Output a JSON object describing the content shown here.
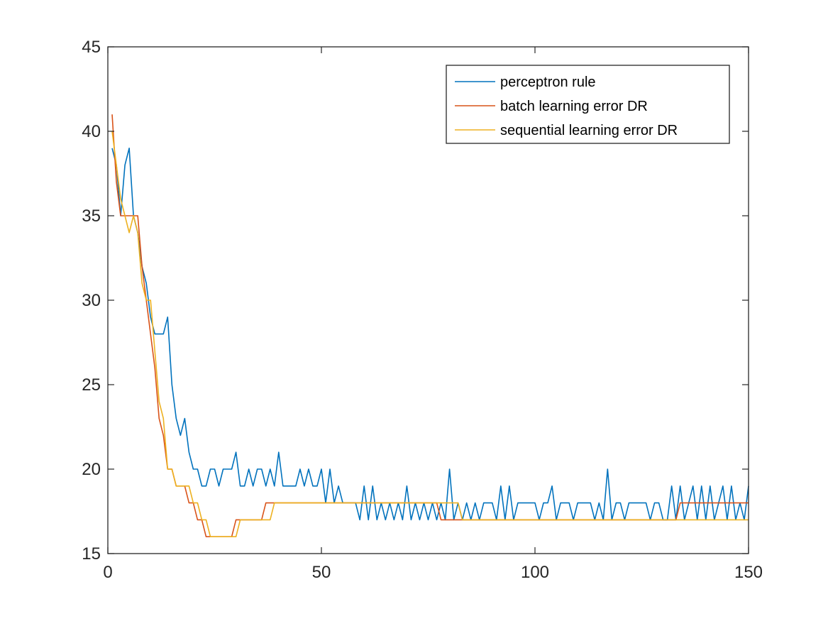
{
  "chart_data": {
    "type": "line",
    "title": "",
    "xlabel": "",
    "ylabel": "",
    "xlim": [
      0,
      150
    ],
    "ylim": [
      15,
      45
    ],
    "x_ticks": [
      0,
      50,
      100,
      150
    ],
    "y_ticks": [
      15,
      20,
      25,
      30,
      35,
      40,
      45
    ],
    "grid": false,
    "legend_position": "top-right",
    "series": [
      {
        "name": "perceptron rule",
        "color": "#0072BD",
        "x_start": 1,
        "values": [
          39,
          38,
          35,
          38,
          39,
          35,
          34,
          32,
          31,
          29,
          28,
          28,
          28,
          29,
          25,
          23,
          22,
          23,
          21,
          20,
          20,
          19,
          19,
          20,
          20,
          19,
          20,
          20,
          20,
          21,
          19,
          19,
          20,
          19,
          20,
          20,
          19,
          20,
          19,
          21,
          19,
          19,
          19,
          19,
          20,
          19,
          20,
          19,
          19,
          20,
          18,
          20,
          18,
          19,
          18,
          18,
          18,
          18,
          17,
          19,
          17,
          19,
          17,
          18,
          17,
          18,
          17,
          18,
          17,
          19,
          17,
          18,
          17,
          18,
          17,
          18,
          17,
          18,
          17,
          20,
          17,
          18,
          17,
          18,
          17,
          18,
          17,
          18,
          18,
          18,
          17,
          19,
          17,
          19,
          17,
          18,
          18,
          18,
          18,
          18,
          17,
          18,
          18,
          19,
          17,
          18,
          18,
          18,
          17,
          18,
          18,
          18,
          18,
          17,
          18,
          17,
          20,
          17,
          18,
          18,
          17,
          18,
          18,
          18,
          18,
          18,
          17,
          18,
          18,
          17,
          17,
          19,
          17,
          19,
          17,
          18,
          19,
          17,
          19,
          17,
          19,
          17,
          18,
          19,
          17,
          19,
          17,
          18,
          17,
          19
        ]
      },
      {
        "name": "batch learning error DR",
        "color": "#D95319",
        "x_start": 1,
        "values": [
          41,
          37,
          35,
          35,
          35,
          35,
          35,
          32,
          30,
          28,
          26,
          23,
          22,
          20,
          20,
          19,
          19,
          19,
          18,
          18,
          17,
          17,
          16,
          16,
          16,
          16,
          16,
          16,
          16,
          17,
          17,
          17,
          17,
          17,
          17,
          17,
          18,
          18,
          18,
          18,
          18,
          18,
          18,
          18,
          18,
          18,
          18,
          18,
          18,
          18,
          18,
          18,
          18,
          18,
          18,
          18,
          18,
          18,
          18,
          18,
          18,
          18,
          18,
          18,
          18,
          18,
          18,
          18,
          18,
          18,
          18,
          18,
          18,
          18,
          18,
          18,
          18,
          17,
          17,
          17,
          17,
          17,
          17,
          17,
          17,
          17,
          17,
          17,
          17,
          17,
          17,
          17,
          17,
          17,
          17,
          17,
          17,
          17,
          17,
          17,
          17,
          17,
          17,
          17,
          17,
          17,
          17,
          17,
          17,
          17,
          17,
          17,
          17,
          17,
          17,
          17,
          17,
          17,
          17,
          17,
          17,
          17,
          17,
          17,
          17,
          17,
          17,
          17,
          17,
          17,
          17,
          17,
          17,
          18,
          18,
          18,
          18,
          18,
          18,
          18,
          18,
          18,
          18,
          18,
          18,
          18,
          18,
          18,
          18,
          18
        ]
      },
      {
        "name": "sequential learning error DR",
        "color": "#EDB120",
        "x_start": 1,
        "values": [
          40,
          38,
          36,
          35,
          34,
          35,
          34,
          31,
          30,
          30,
          27,
          24,
          23,
          20,
          20,
          19,
          19,
          19,
          19,
          18,
          18,
          17,
          17,
          16,
          16,
          16,
          16,
          16,
          16,
          16,
          17,
          17,
          17,
          17,
          17,
          17,
          17,
          17,
          18,
          18,
          18,
          18,
          18,
          18,
          18,
          18,
          18,
          18,
          18,
          18,
          18,
          18,
          18,
          18,
          18,
          18,
          18,
          18,
          18,
          18,
          18,
          18,
          18,
          18,
          18,
          18,
          18,
          18,
          18,
          18,
          18,
          18,
          18,
          18,
          18,
          18,
          18,
          18,
          18,
          18,
          18,
          18,
          17,
          17,
          17,
          17,
          17,
          17,
          17,
          17,
          17,
          17,
          17,
          17,
          17,
          17,
          17,
          17,
          17,
          17,
          17,
          17,
          17,
          17,
          17,
          17,
          17,
          17,
          17,
          17,
          17,
          17,
          17,
          17,
          17,
          17,
          17,
          17,
          17,
          17,
          17,
          17,
          17,
          17,
          17,
          17,
          17,
          17,
          17,
          17,
          17,
          17,
          17,
          17,
          17,
          17,
          17,
          17,
          17,
          17,
          17,
          17,
          17,
          17,
          17,
          17,
          17,
          17,
          17,
          17
        ]
      }
    ]
  }
}
